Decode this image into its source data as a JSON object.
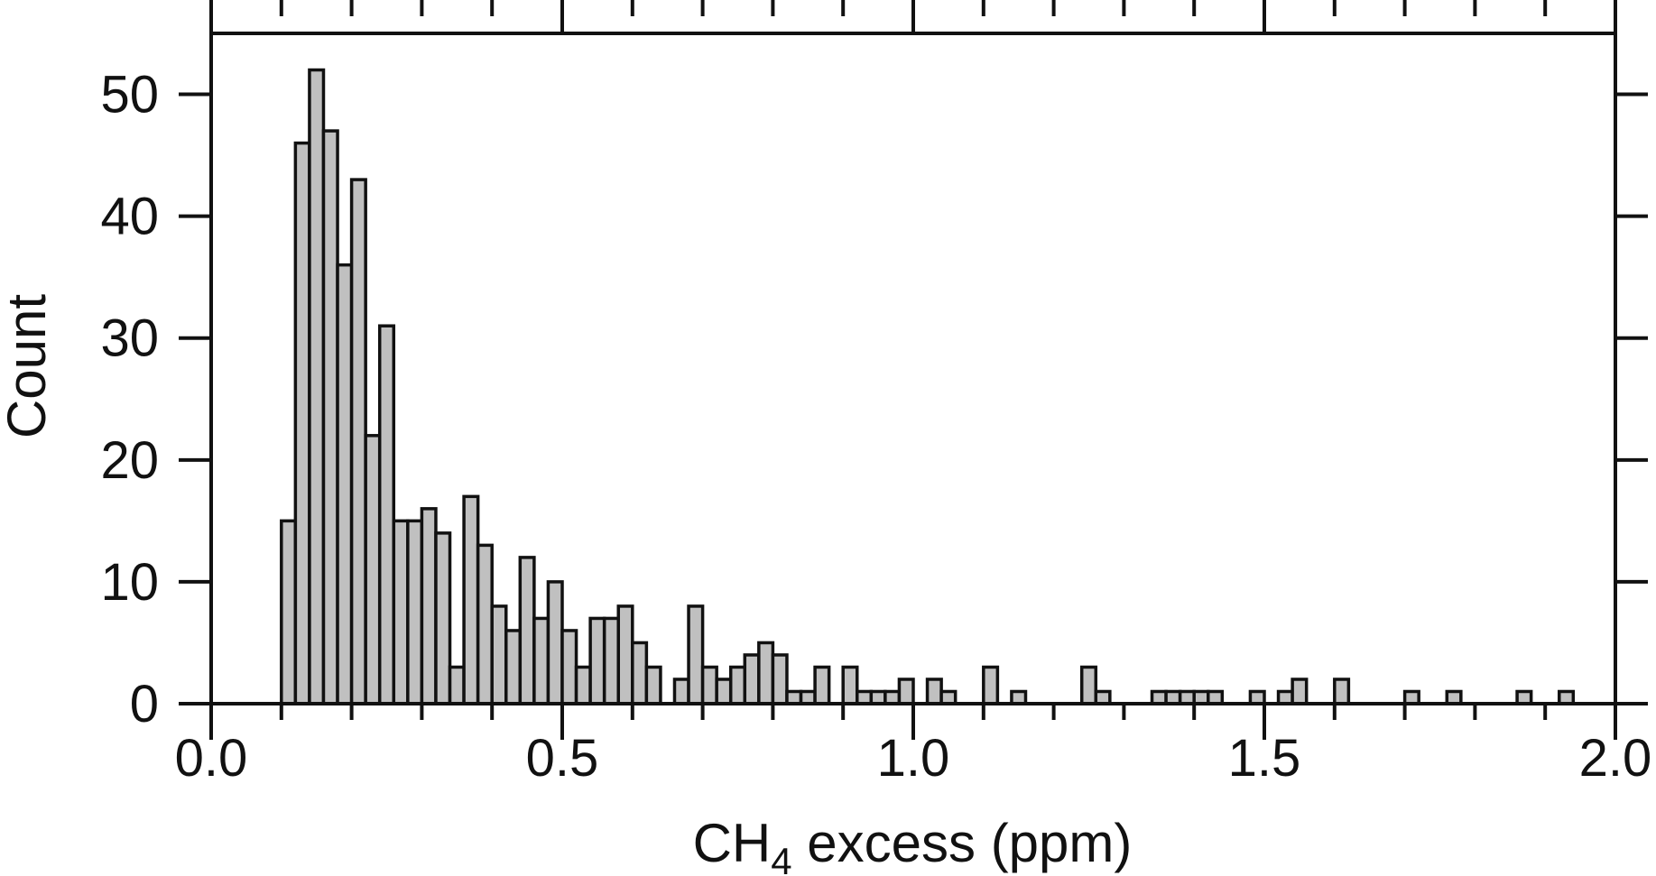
{
  "chart_data": {
    "type": "bar",
    "title": "",
    "xlabel_main": "CH",
    "xlabel_sub": "4",
    "xlabel_rest": " excess (ppm)",
    "ylabel": "Count",
    "xlim": [
      0.0,
      2.0
    ],
    "ylim": [
      0,
      55
    ],
    "bin_width": 0.02,
    "x_ticks": [
      {
        "value": 0.0,
        "label": "0.0"
      },
      {
        "value": 0.5,
        "label": "0.5"
      },
      {
        "value": 1.0,
        "label": "1.0"
      },
      {
        "value": 1.5,
        "label": "1.5"
      },
      {
        "value": 2.0,
        "label": "2.0"
      }
    ],
    "y_ticks": [
      {
        "value": 0,
        "label": "0"
      },
      {
        "value": 10,
        "label": "10"
      },
      {
        "value": 20,
        "label": "20"
      },
      {
        "value": 30,
        "label": "30"
      },
      {
        "value": 40,
        "label": "40"
      },
      {
        "value": 50,
        "label": "50"
      }
    ],
    "bar_fill": "#c0c0c0",
    "bar_stroke": "#111111",
    "grid": false,
    "bins": [
      {
        "x": 0.1,
        "count": 15
      },
      {
        "x": 0.12,
        "count": 46
      },
      {
        "x": 0.14,
        "count": 52
      },
      {
        "x": 0.16,
        "count": 47
      },
      {
        "x": 0.18,
        "count": 36
      },
      {
        "x": 0.2,
        "count": 43
      },
      {
        "x": 0.22,
        "count": 22
      },
      {
        "x": 0.24,
        "count": 31
      },
      {
        "x": 0.26,
        "count": 15
      },
      {
        "x": 0.28,
        "count": 15
      },
      {
        "x": 0.3,
        "count": 16
      },
      {
        "x": 0.32,
        "count": 14
      },
      {
        "x": 0.34,
        "count": 3
      },
      {
        "x": 0.36,
        "count": 17
      },
      {
        "x": 0.38,
        "count": 13
      },
      {
        "x": 0.4,
        "count": 8
      },
      {
        "x": 0.42,
        "count": 6
      },
      {
        "x": 0.44,
        "count": 12
      },
      {
        "x": 0.46,
        "count": 7
      },
      {
        "x": 0.48,
        "count": 10
      },
      {
        "x": 0.5,
        "count": 6
      },
      {
        "x": 0.52,
        "count": 3
      },
      {
        "x": 0.54,
        "count": 7
      },
      {
        "x": 0.56,
        "count": 7
      },
      {
        "x": 0.58,
        "count": 8
      },
      {
        "x": 0.6,
        "count": 5
      },
      {
        "x": 0.62,
        "count": 3
      },
      {
        "x": 0.64,
        "count": 0
      },
      {
        "x": 0.66,
        "count": 2
      },
      {
        "x": 0.68,
        "count": 8
      },
      {
        "x": 0.7,
        "count": 3
      },
      {
        "x": 0.72,
        "count": 2
      },
      {
        "x": 0.74,
        "count": 3
      },
      {
        "x": 0.76,
        "count": 4
      },
      {
        "x": 0.78,
        "count": 5
      },
      {
        "x": 0.8,
        "count": 4
      },
      {
        "x": 0.82,
        "count": 1
      },
      {
        "x": 0.84,
        "count": 1
      },
      {
        "x": 0.86,
        "count": 3
      },
      {
        "x": 0.88,
        "count": 0
      },
      {
        "x": 0.9,
        "count": 3
      },
      {
        "x": 0.92,
        "count": 1
      },
      {
        "x": 0.94,
        "count": 1
      },
      {
        "x": 0.96,
        "count": 1
      },
      {
        "x": 0.98,
        "count": 2
      },
      {
        "x": 1.0,
        "count": 0
      },
      {
        "x": 1.02,
        "count": 2
      },
      {
        "x": 1.04,
        "count": 1
      },
      {
        "x": 1.06,
        "count": 0
      },
      {
        "x": 1.08,
        "count": 0
      },
      {
        "x": 1.1,
        "count": 3
      },
      {
        "x": 1.12,
        "count": 0
      },
      {
        "x": 1.14,
        "count": 1
      },
      {
        "x": 1.16,
        "count": 0
      },
      {
        "x": 1.18,
        "count": 0
      },
      {
        "x": 1.2,
        "count": 0
      },
      {
        "x": 1.22,
        "count": 0
      },
      {
        "x": 1.24,
        "count": 3
      },
      {
        "x": 1.26,
        "count": 1
      },
      {
        "x": 1.28,
        "count": 0
      },
      {
        "x": 1.3,
        "count": 0
      },
      {
        "x": 1.32,
        "count": 0
      },
      {
        "x": 1.34,
        "count": 1
      },
      {
        "x": 1.36,
        "count": 1
      },
      {
        "x": 1.38,
        "count": 1
      },
      {
        "x": 1.4,
        "count": 1
      },
      {
        "x": 1.42,
        "count": 1
      },
      {
        "x": 1.44,
        "count": 0
      },
      {
        "x": 1.46,
        "count": 0
      },
      {
        "x": 1.48,
        "count": 1
      },
      {
        "x": 1.5,
        "count": 0
      },
      {
        "x": 1.52,
        "count": 1
      },
      {
        "x": 1.54,
        "count": 2
      },
      {
        "x": 1.56,
        "count": 0
      },
      {
        "x": 1.58,
        "count": 0
      },
      {
        "x": 1.6,
        "count": 2
      },
      {
        "x": 1.62,
        "count": 0
      },
      {
        "x": 1.64,
        "count": 0
      },
      {
        "x": 1.66,
        "count": 0
      },
      {
        "x": 1.68,
        "count": 0
      },
      {
        "x": 1.7,
        "count": 1
      },
      {
        "x": 1.72,
        "count": 0
      },
      {
        "x": 1.74,
        "count": 0
      },
      {
        "x": 1.76,
        "count": 1
      },
      {
        "x": 1.78,
        "count": 0
      },
      {
        "x": 1.8,
        "count": 0
      },
      {
        "x": 1.82,
        "count": 0
      },
      {
        "x": 1.84,
        "count": 0
      },
      {
        "x": 1.86,
        "count": 1
      },
      {
        "x": 1.88,
        "count": 0
      },
      {
        "x": 1.9,
        "count": 0
      },
      {
        "x": 1.92,
        "count": 1
      },
      {
        "x": 1.94,
        "count": 0
      },
      {
        "x": 1.96,
        "count": 0
      },
      {
        "x": 1.98,
        "count": 0
      }
    ]
  }
}
